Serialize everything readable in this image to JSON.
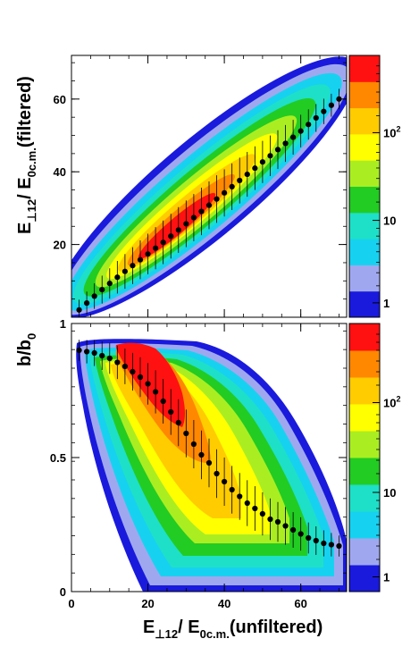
{
  "chart_data": [
    {
      "type": "heatmap",
      "xlabel": "",
      "ylabel": "E⊥12/ E0c.m.(filtered)",
      "ylabel_parts": {
        "main": "E",
        "sub1": "⊥12",
        "slash": "/ E",
        "sub2": "0c.m.",
        "tail": "(filtered)"
      },
      "xlim": [
        0,
        72
      ],
      "ylim": [
        0,
        72
      ],
      "x_ticks": [
        0,
        20,
        40,
        60
      ],
      "y_ticks": [
        20,
        40,
        60
      ],
      "y_tick_labels": [
        "20",
        "40",
        "60"
      ],
      "color_scale": "log",
      "colorbar_ticks": [
        "1",
        "10",
        "10^2"
      ],
      "colorbar_colors": [
        "#1a1add",
        "#9fa8ef",
        "#16d2f0",
        "#1ee0c8",
        "#22cc22",
        "#aaee22",
        "#ffff00",
        "#ffcc00",
        "#ff8800",
        "#ff1111"
      ],
      "mean_points": {
        "x": [
          2,
          4,
          6,
          8,
          10,
          12,
          14,
          16,
          18,
          20,
          22,
          24,
          26,
          28,
          30,
          32,
          34,
          36,
          38,
          40,
          42,
          44,
          46,
          48,
          50,
          52,
          54,
          56,
          58,
          60,
          62,
          64,
          66,
          68,
          70
        ],
        "y": [
          2,
          3.9,
          5.8,
          7.6,
          9.3,
          11,
          12.6,
          14.2,
          15.8,
          17.4,
          19,
          20.6,
          22.3,
          24,
          25.7,
          27.4,
          29.1,
          30.8,
          32.5,
          34.2,
          35.9,
          37.6,
          39.3,
          41,
          42.7,
          44.4,
          46.1,
          47.8,
          49.5,
          51.2,
          53,
          54.8,
          56.6,
          58.3,
          60
        ]
      }
    },
    {
      "type": "heatmap",
      "xlabel": "E⊥12/ E0c.m.(unfiltered)",
      "xlabel_parts": {
        "main": "E",
        "sub1": "⊥12",
        "slash": "/ E",
        "sub2": "0c.m.",
        "tail": "(unfiltered)"
      },
      "ylabel": "b/b0",
      "ylabel_parts": {
        "main": "b/b",
        "sub": "0"
      },
      "xlim": [
        0,
        72
      ],
      "ylim": [
        0,
        1
      ],
      "x_ticks": [
        0,
        20,
        40,
        60
      ],
      "x_tick_labels": [
        "0",
        "20",
        "40",
        "60"
      ],
      "y_ticks": [
        0,
        0.5,
        1
      ],
      "y_tick_labels": [
        "0",
        "0.5",
        "1"
      ],
      "color_scale": "log",
      "colorbar_ticks": [
        "1",
        "10",
        "10^2"
      ],
      "colorbar_colors": [
        "#1a1add",
        "#9fa8ef",
        "#16d2f0",
        "#1ee0c8",
        "#22cc22",
        "#aaee22",
        "#ffff00",
        "#ffcc00",
        "#ff8800",
        "#ff1111"
      ],
      "mean_points": {
        "x": [
          2,
          4,
          6,
          8,
          10,
          12,
          14,
          16,
          18,
          20,
          22,
          24,
          26,
          28,
          30,
          32,
          34,
          36,
          38,
          40,
          42,
          44,
          46,
          48,
          50,
          52,
          54,
          56,
          58,
          60,
          62,
          64,
          66,
          68,
          70
        ],
        "y": [
          0.9,
          0.895,
          0.89,
          0.88,
          0.87,
          0.855,
          0.84,
          0.82,
          0.8,
          0.775,
          0.745,
          0.71,
          0.67,
          0.63,
          0.59,
          0.55,
          0.51,
          0.48,
          0.44,
          0.41,
          0.38,
          0.355,
          0.33,
          0.31,
          0.29,
          0.27,
          0.26,
          0.245,
          0.23,
          0.215,
          0.2,
          0.19,
          0.18,
          0.175,
          0.17
        ]
      }
    }
  ]
}
